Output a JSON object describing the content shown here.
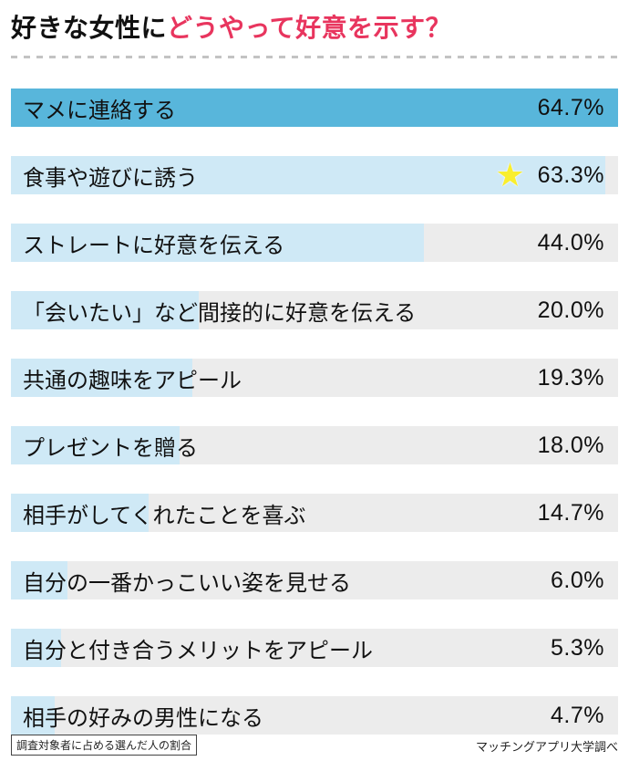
{
  "title": {
    "black": "好きな女性に",
    "accent": "どうやって好意を示す？"
  },
  "chart_data": {
    "type": "bar",
    "orientation": "horizontal",
    "title": "好きな女性にどうやって好意を示す？",
    "xlabel": "",
    "ylabel": "",
    "unit": "%",
    "xlim": [
      0,
      64.7
    ],
    "max_scale": 64.7,
    "grid": false,
    "legend": "none",
    "categories": [
      "マメに連絡する",
      "食事や遊びに誘う",
      "ストレートに好意を伝える",
      "「会いたい」など間接的に好意を伝える",
      "共通の趣味をアピール",
      "プレゼントを贈る",
      "相手がしてくれたことを喜ぶ",
      "自分の一番かっこいい姿を見せる",
      "自分と付き合うメリットをアピール",
      "相手の好みの男性になる"
    ],
    "values": [
      64.7,
      63.3,
      44.0,
      20.0,
      19.3,
      18.0,
      14.7,
      6.0,
      5.3,
      4.7
    ],
    "value_labels": [
      "64.7%",
      "63.3%",
      "44.0%",
      "20.0%",
      "19.3%",
      "18.0%",
      "14.7%",
      "6.0%",
      "5.3%",
      "4.7%"
    ],
    "highlight_index": 0,
    "starred_index": 1
  },
  "icons": {
    "star": "★"
  },
  "footer": {
    "note": "調査対象者に占める選んだ人の割合",
    "source": "マッチングアプリ大学調べ"
  },
  "colors": {
    "accent": "#e8355e",
    "bar_highlight": "#58b6db",
    "bar_fill": "#cfe9f6",
    "track": "#ececec",
    "star": "#f9ee2e"
  }
}
